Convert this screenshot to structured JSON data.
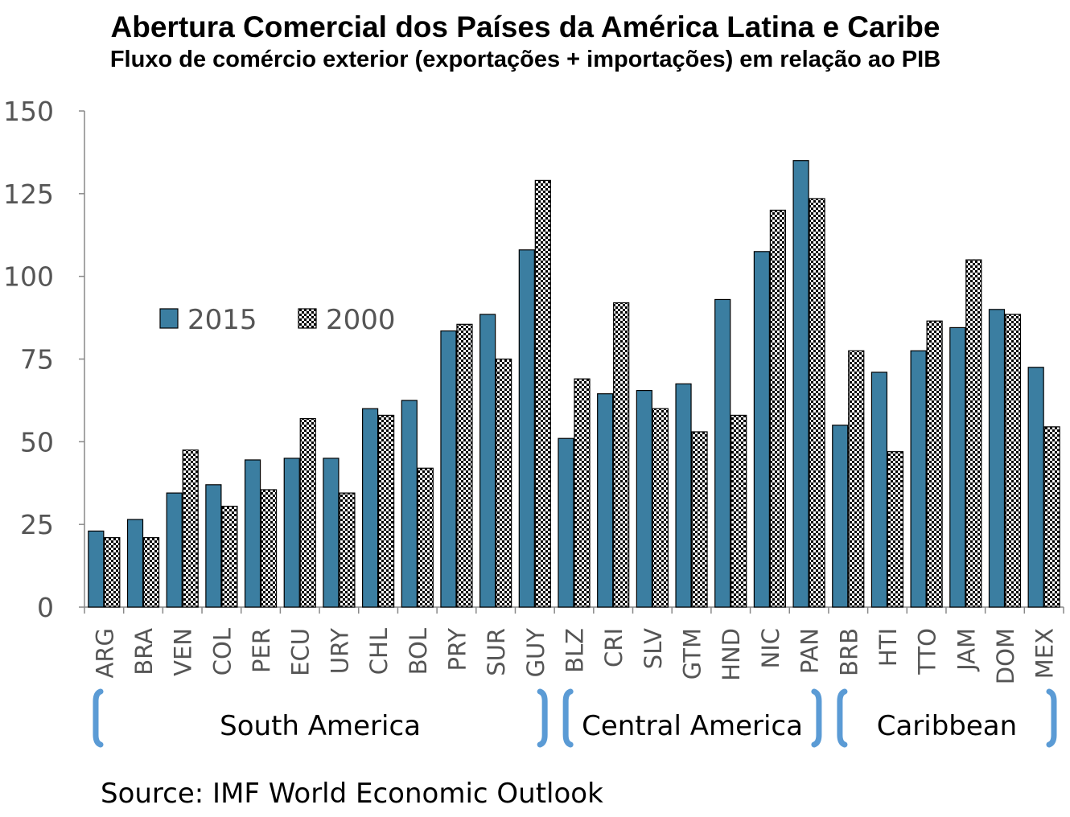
{
  "chart_data": {
    "type": "bar",
    "title": "Abertura Comercial dos Países da América Latina e Caribe",
    "subtitle": "Fluxo de comércio exterior (exportações + importações) em relação ao PIB",
    "categories": [
      "ARG",
      "BRA",
      "VEN",
      "COL",
      "PER",
      "ECU",
      "URY",
      "CHL",
      "BOL",
      "PRY",
      "SUR",
      "GUY",
      "BLZ",
      "CRI",
      "SLV",
      "GTM",
      "HND",
      "NIC",
      "PAN",
      "BRB",
      "HTI",
      "TTO",
      "JAM",
      "DOM",
      "MEX"
    ],
    "series": [
      {
        "name": "2015",
        "color": "#3b7ea1",
        "pattern": "solid",
        "values": [
          23,
          26.5,
          34.5,
          37,
          44.5,
          45,
          45,
          60,
          62.5,
          83.5,
          88.5,
          108,
          51,
          64.5,
          65.5,
          67.5,
          93,
          107.5,
          135,
          55,
          71,
          77.5,
          84.5,
          90,
          72.5
        ]
      },
      {
        "name": "2000",
        "color": "#ffffff",
        "pattern": "checkered",
        "values": [
          21,
          21,
          47.5,
          30.5,
          35.5,
          57,
          34.5,
          58,
          42,
          85.5,
          75,
          129,
          69,
          92,
          60,
          53,
          58,
          120,
          123.5,
          77.5,
          47,
          86.5,
          105,
          88.5,
          54.5
        ]
      }
    ],
    "ylim": [
      0,
      150
    ],
    "yticks": [
      0,
      25,
      50,
      75,
      100,
      125,
      150
    ],
    "grid": false,
    "legend": "upper-left",
    "groups": [
      {
        "label": "South America",
        "from": "ARG",
        "to": "GUY"
      },
      {
        "label": "Central America",
        "from": "BLZ",
        "to": "PAN"
      },
      {
        "label": "Caribbean",
        "from": "BRB",
        "to": "MEX"
      }
    ],
    "brace_color": "#5b9bd5"
  },
  "footer": {
    "source": "Source: IMF World Economic Outlook"
  }
}
